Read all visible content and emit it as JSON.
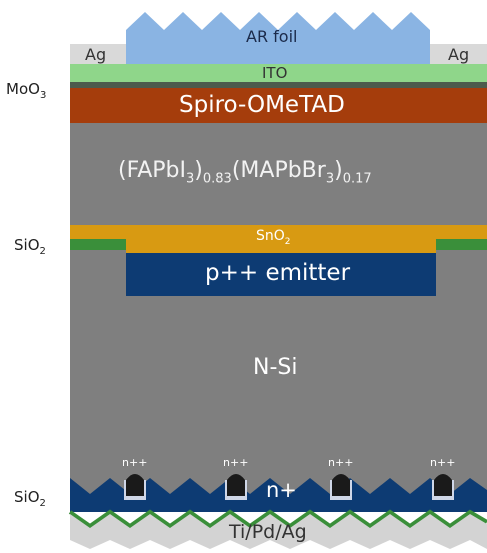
{
  "diagram": {
    "layers": {
      "ar_foil": "AR foil",
      "ag_left": "Ag",
      "ag_right": "Ag",
      "ito": "ITO",
      "spiro": "Spiro-OMeTAD",
      "perovskite": {
        "fapbi": "(FAPbI",
        "sub1": "3",
        "close1": ")",
        "sub_083": "0.83",
        "mapbbr": "(MAPbBr",
        "sub2": "3",
        "close2": ")",
        "sub_017": "0.17"
      },
      "sno2": {
        "base": "SnO",
        "sub": "2"
      },
      "emitter": "p++ emitter",
      "nsi": "N-Si",
      "n_plus": "n+",
      "n_pp": [
        "n++",
        "n++",
        "n++",
        "n++"
      ],
      "metal": "Ti/Pd/Ag"
    },
    "side_labels": {
      "moo3": {
        "base": "MoO",
        "sub": "3"
      },
      "sio2_top": {
        "base": "SiO",
        "sub": "2"
      },
      "sio2_bottom": {
        "base": "SiO",
        "sub": "2"
      }
    },
    "colors": {
      "ar_foil": "#8ab4e3",
      "ito": "#8fd68a",
      "spiro": "#a53d0c",
      "bulk": "#7f7f7f",
      "sno2": "#d89a12",
      "sio2": "#3a8f3a",
      "emitter": "#0d3b73",
      "n_plus": "#0d3b73",
      "metal": "#d3d3d3"
    }
  }
}
